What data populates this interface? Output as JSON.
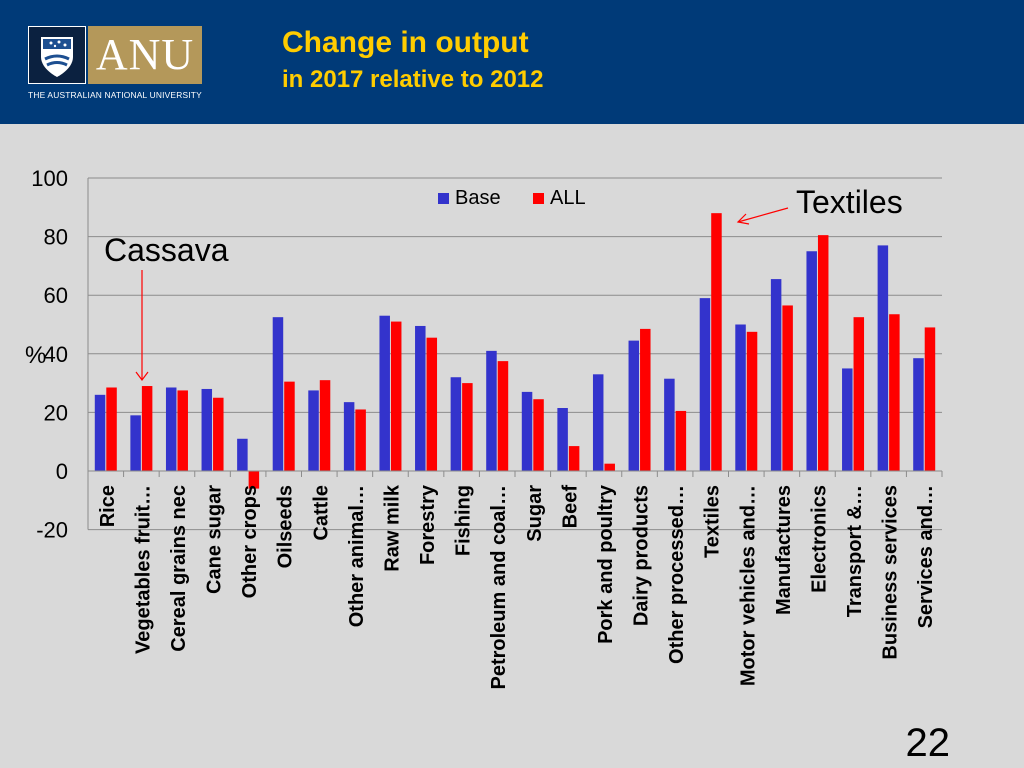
{
  "header": {
    "logo_text": "ANU",
    "university": "THE AUSTRALIAN NATIONAL UNIVERSITY",
    "title": "Change in output",
    "subtitle": "in 2017 relative to 2012"
  },
  "annotations": {
    "cassava": "Cassava",
    "textiles": "Textiles"
  },
  "page_number": "22",
  "colors": {
    "header_bg": "#003a78",
    "title": "#ffcc00",
    "base": "#3333cc",
    "all": "#ff0000",
    "background": "#d9d9d9"
  },
  "chart_data": {
    "type": "bar",
    "ylabel": "%",
    "ylim": [
      -20,
      100
    ],
    "yticks": [
      -20,
      0,
      20,
      40,
      60,
      80,
      100
    ],
    "grid": true,
    "legend_position": "top-center",
    "categories": [
      "Rice",
      "Vegetables fruit…",
      "Cereal grains nec",
      "Cane sugar",
      "Other crops",
      "Oilseeds",
      "Cattle",
      "Other animal…",
      "Raw milk",
      "Forestry",
      "Fishing",
      "Petroleum and coal…",
      "Sugar",
      "Beef",
      "Pork and poultry",
      "Dairy products",
      "Other processed…",
      "Textiles",
      "Motor vehicles and…",
      "Manufactures",
      "Electronics",
      "Transport &…",
      "Business services",
      "Services and…"
    ],
    "series": [
      {
        "name": "Base",
        "color": "#3333cc",
        "values": [
          26,
          19,
          28.5,
          28,
          11,
          52.5,
          27.5,
          23.5,
          53,
          49.5,
          32,
          41,
          27,
          21.5,
          33,
          44.5,
          31.5,
          59,
          50,
          65.5,
          75,
          35,
          77,
          38.5
        ]
      },
      {
        "name": "ALL",
        "color": "#ff0000",
        "values": [
          28.5,
          29,
          27.5,
          25,
          -6,
          30.5,
          31,
          21,
          51,
          45.5,
          30,
          37.5,
          24.5,
          8.5,
          2.5,
          48.5,
          20.5,
          88,
          47.5,
          56.5,
          80.5,
          52.5,
          53.5,
          49
        ]
      }
    ]
  }
}
